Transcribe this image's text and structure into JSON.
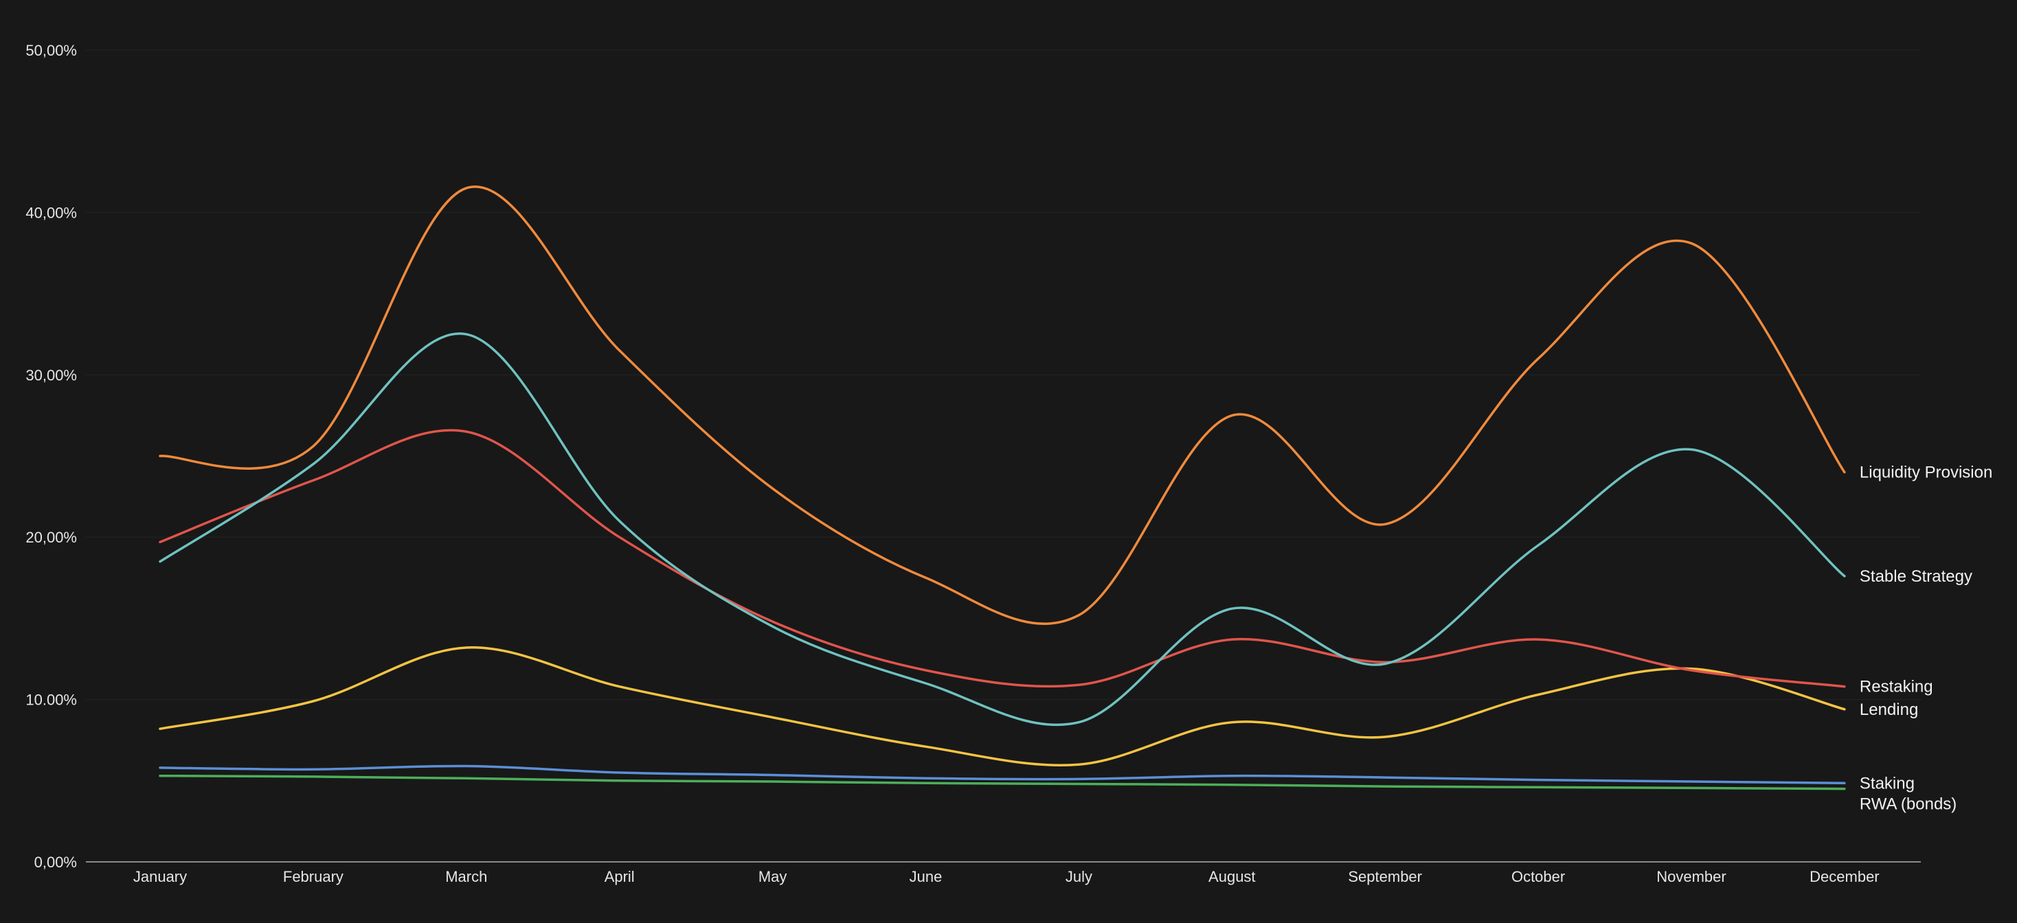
{
  "chart_data": {
    "type": "line",
    "title": "",
    "xlabel": "",
    "ylabel": "",
    "categories": [
      "January",
      "February",
      "March",
      "April",
      "May",
      "June",
      "July",
      "August",
      "September",
      "October",
      "November",
      "December"
    ],
    "ylim": [
      0,
      50
    ],
    "yticks": [
      0,
      10,
      20,
      30,
      40,
      50
    ],
    "ytick_labels": [
      "0,00%",
      "10.00%",
      "20,00%",
      "30,00%",
      "40,00%",
      "50,00%"
    ],
    "grid": true,
    "legend": "inline-right",
    "series": [
      {
        "name": "Liquidity Provision",
        "color": "#f08a3c",
        "values": [
          25.0,
          25.6,
          41.5,
          31.5,
          23.0,
          17.5,
          15.2,
          27.5,
          20.8,
          31.0,
          38.1,
          24.0
        ]
      },
      {
        "name": "Stable Strategy",
        "color": "#6fc2c0",
        "values": [
          18.5,
          24.5,
          32.5,
          21.0,
          14.5,
          11.0,
          8.6,
          15.6,
          12.2,
          19.5,
          25.4,
          17.6
        ]
      },
      {
        "name": "Restaking",
        "color": "#e0554c",
        "values": [
          19.7,
          23.5,
          26.5,
          20.0,
          14.8,
          11.8,
          10.9,
          13.7,
          12.3,
          13.7,
          11.8,
          10.8
        ]
      },
      {
        "name": "Lending",
        "color": "#f5c443",
        "values": [
          8.2,
          9.9,
          13.2,
          10.8,
          8.9,
          7.1,
          6.0,
          8.6,
          7.7,
          10.3,
          11.9,
          9.4
        ]
      },
      {
        "name": "Staking",
        "color": "#5b8fd6",
        "values": [
          5.8,
          5.7,
          5.9,
          5.5,
          5.35,
          5.15,
          5.1,
          5.3,
          5.2,
          5.05,
          4.95,
          4.85
        ]
      },
      {
        "name": "RWA (bonds)",
        "color": "#4caf5a",
        "values": [
          5.3,
          5.25,
          5.15,
          5.0,
          4.95,
          4.85,
          4.8,
          4.75,
          4.65,
          4.6,
          4.55,
          4.5
        ]
      }
    ]
  }
}
